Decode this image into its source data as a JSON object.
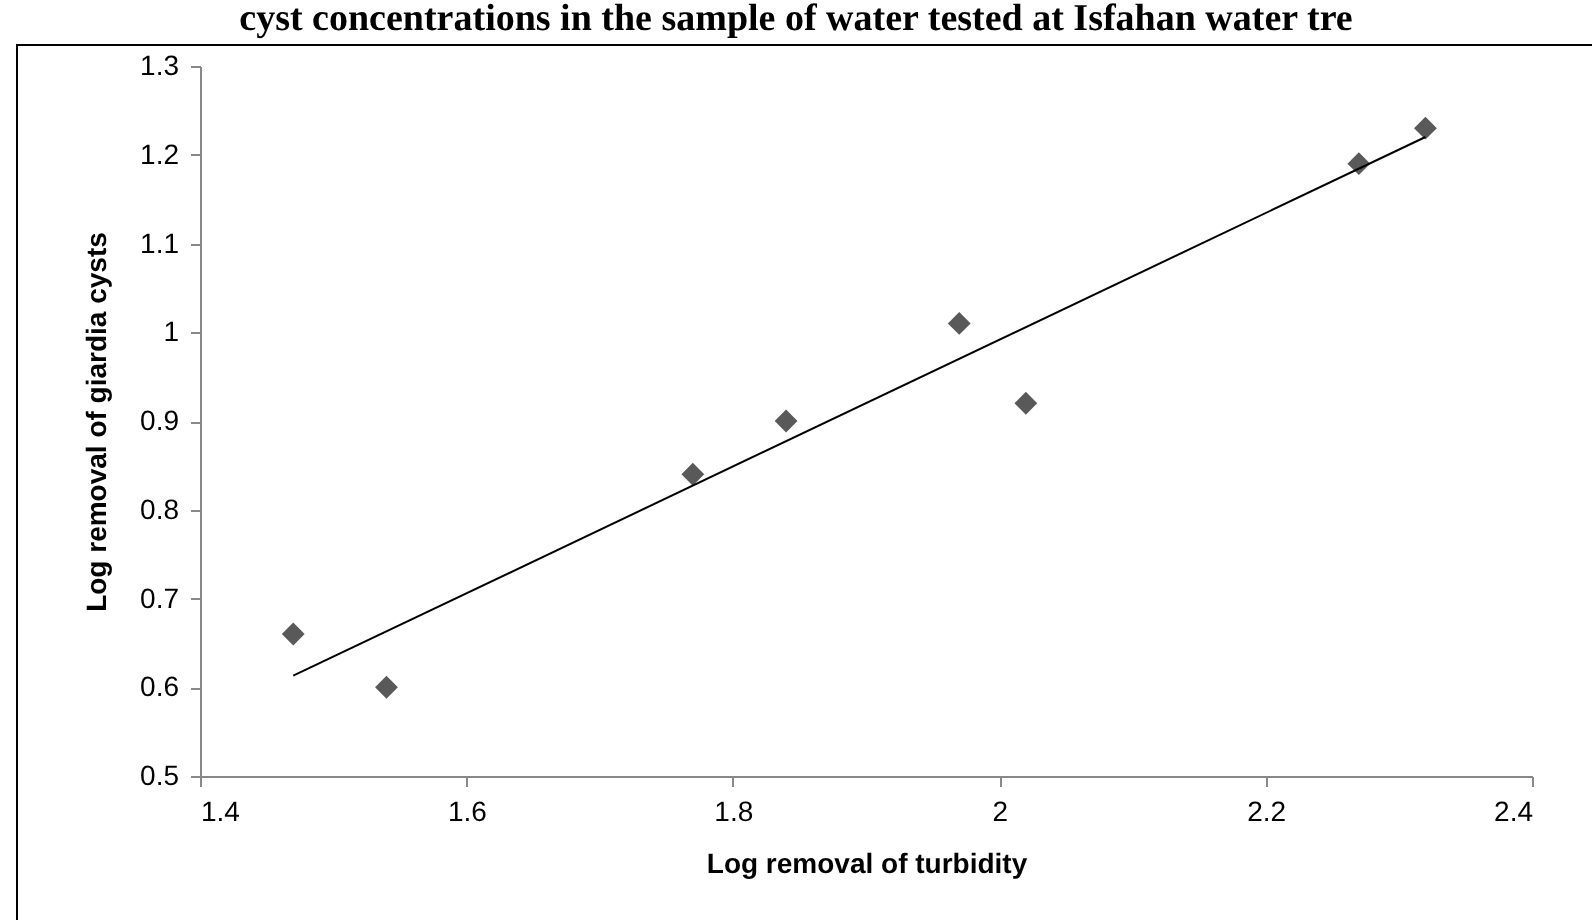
{
  "chart_data": {
    "type": "scatter",
    "title": "cyst concentrations in the sample of water tested at Isfahan water tre",
    "xlabel": "Log removal of turbidity",
    "ylabel": "Log removal of giardia cysts",
    "xlim": [
      1.4,
      2.4
    ],
    "xticks": [
      1.4,
      1.6,
      1.8,
      2,
      2.2,
      2.4
    ],
    "ylim": [
      0.5,
      1.3
    ],
    "yticks": [
      0.5,
      0.6,
      0.7,
      0.8,
      0.9,
      1,
      1.1,
      1.2,
      1.3
    ],
    "grid": false,
    "series": [
      {
        "marker": "diamond",
        "color": "#595959",
        "x": [
          1.47,
          1.54,
          1.77,
          1.84,
          1.97,
          2.02,
          2.27,
          2.32
        ],
        "values": [
          0.66,
          0.6,
          0.84,
          0.9,
          1.01,
          0.92,
          1.19,
          1.23
        ]
      },
      {
        "type": "line",
        "marker": "none",
        "color": "#000000",
        "line_style": "solid",
        "x": [
          1.47,
          2.32
        ],
        "values": [
          0.613,
          1.22
        ]
      }
    ]
  }
}
